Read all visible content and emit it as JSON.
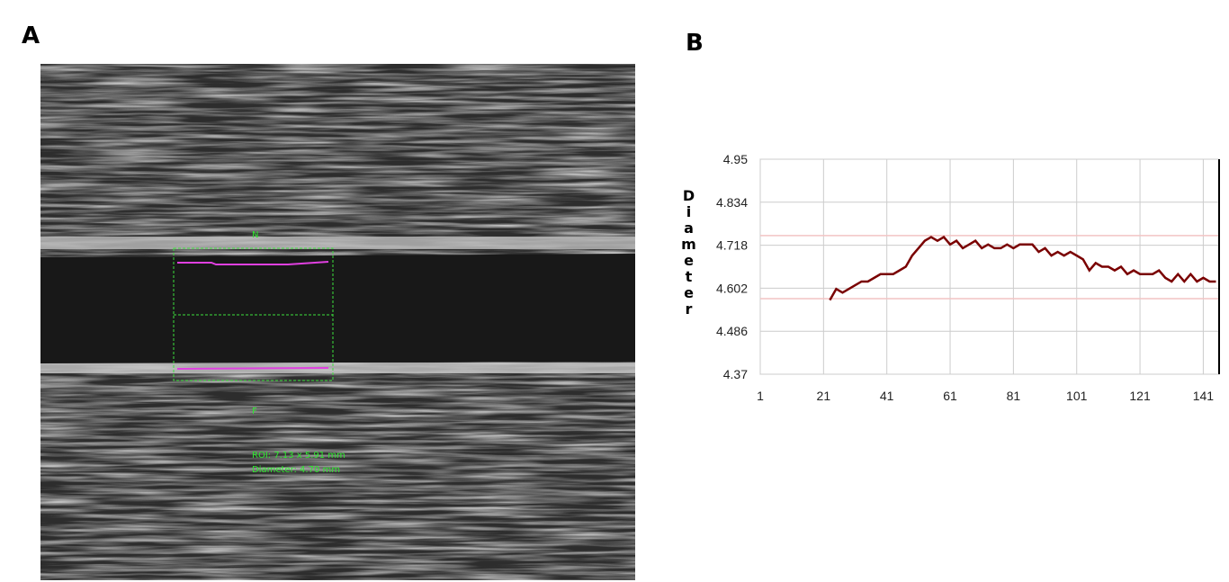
{
  "panel_a": {
    "label": "A",
    "marker_top": "N",
    "marker_bottom": "F",
    "roi_text": "ROI: 7.13 x 5.91 mm",
    "diameter_text": "Diameter: 4.70 mm"
  },
  "chart_data": {
    "type": "line",
    "panel_label": "B",
    "y_label": "Diameter",
    "xlim": [
      1,
      146
    ],
    "xticks": [
      1,
      21,
      41,
      61,
      81,
      101,
      121,
      141
    ],
    "ylim": [
      4.37,
      4.95
    ],
    "yticks": [
      4.37,
      4.486,
      4.602,
      4.718,
      4.834,
      4.95
    ],
    "grid": true,
    "reference_lines": [
      4.744,
      4.574
    ],
    "reference_color": "#f2c4c4",
    "series": [
      {
        "color": "#7a0000",
        "x": [
          23,
          25,
          27,
          29,
          31,
          33,
          35,
          37,
          39,
          41,
          43,
          45,
          47,
          49,
          51,
          53,
          55,
          57,
          59,
          61,
          63,
          65,
          67,
          69,
          71,
          73,
          75,
          77,
          79,
          81,
          83,
          85,
          87,
          89,
          91,
          93,
          95,
          97,
          99,
          101,
          103,
          105,
          107,
          109,
          111,
          113,
          115,
          117,
          119,
          121,
          123,
          125,
          127,
          129,
          131,
          133,
          135,
          137,
          139,
          141,
          143,
          145
        ],
        "values": [
          4.57,
          4.6,
          4.59,
          4.6,
          4.61,
          4.62,
          4.62,
          4.63,
          4.64,
          4.64,
          4.64,
          4.65,
          4.66,
          4.69,
          4.71,
          4.73,
          4.74,
          4.73,
          4.74,
          4.72,
          4.73,
          4.71,
          4.72,
          4.73,
          4.71,
          4.72,
          4.71,
          4.71,
          4.72,
          4.71,
          4.72,
          4.72,
          4.72,
          4.7,
          4.71,
          4.69,
          4.7,
          4.69,
          4.7,
          4.69,
          4.68,
          4.65,
          4.67,
          4.66,
          4.66,
          4.65,
          4.66,
          4.64,
          4.65,
          4.64,
          4.64,
          4.64,
          4.65,
          4.63,
          4.62,
          4.64,
          4.62,
          4.64,
          4.62,
          4.63,
          4.62,
          4.62
        ]
      }
    ]
  }
}
